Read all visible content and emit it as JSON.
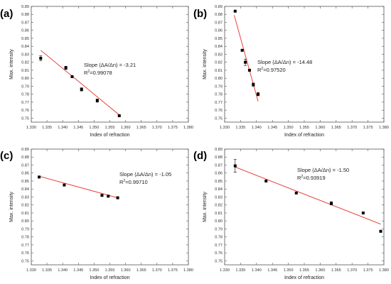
{
  "chart_data": [
    {
      "type": "scatter",
      "panel_label": "(a)",
      "xlabel": "Index of refraction",
      "ylabel": "Max. intensity",
      "xlim": [
        1.33,
        1.38
      ],
      "ylim": [
        0.745,
        0.89
      ],
      "x_ticks": [
        "1.330",
        "1.335",
        "1.340",
        "1.345",
        "1.350",
        "1.355",
        "1.360",
        "1.365",
        "1.370",
        "1.375",
        "1.380"
      ],
      "y_ticks": [
        "0.75",
        "0.76",
        "0.77",
        "0.78",
        "0.79",
        "0.80",
        "0.81",
        "0.82",
        "0.83",
        "0.84",
        "0.85",
        "0.86",
        "0.87",
        "0.88",
        "0.89"
      ],
      "points": [
        {
          "x": 1.333,
          "y": 0.825,
          "err": 0.003
        },
        {
          "x": 1.341,
          "y": 0.813,
          "err": 0.002
        },
        {
          "x": 1.343,
          "y": 0.802,
          "err": 0
        },
        {
          "x": 1.346,
          "y": 0.786,
          "err": 0.002
        },
        {
          "x": 1.351,
          "y": 0.772,
          "err": 0.002
        },
        {
          "x": 1.358,
          "y": 0.753,
          "err": 0
        }
      ],
      "fit": {
        "x": [
          1.333,
          1.358
        ],
        "y": [
          0.835,
          0.754
        ]
      },
      "annotation": {
        "slope": "Slope (ΔA/Δn) = -3.21",
        "r2_prefix": "R",
        "r2_sup": "2",
        "r2_value": "=0.99078"
      }
    },
    {
      "type": "scatter",
      "panel_label": "(b)",
      "xlabel": "Index of refraction",
      "ylabel": "Max. intensity",
      "xlim": [
        1.33,
        1.38
      ],
      "ylim": [
        0.745,
        0.89
      ],
      "x_ticks": [
        "1.330",
        "1.335",
        "1.340",
        "1.345",
        "1.350",
        "1.355",
        "1.360",
        "1.365",
        "1.370",
        "1.375",
        "1.380"
      ],
      "y_ticks": [
        "0.75",
        "0.76",
        "0.77",
        "0.78",
        "0.79",
        "0.80",
        "0.81",
        "0.82",
        "0.83",
        "0.84",
        "0.85",
        "0.86",
        "0.87",
        "0.88",
        "0.89"
      ],
      "points": [
        {
          "x": 1.3333,
          "y": 0.884,
          "err": 0
        },
        {
          "x": 1.3355,
          "y": 0.835,
          "err": 0
        },
        {
          "x": 1.3365,
          "y": 0.82,
          "err": 0.004
        },
        {
          "x": 1.3378,
          "y": 0.81,
          "err": 0
        },
        {
          "x": 1.339,
          "y": 0.792,
          "err": 0.002
        },
        {
          "x": 1.3405,
          "y": 0.78,
          "err": 0.002
        }
      ],
      "fit": {
        "x": [
          1.333,
          1.3405
        ],
        "y": [
          0.879,
          0.771
        ]
      },
      "annotation": {
        "slope": "Slope (ΔA/Δn) = -14.48",
        "r2_prefix": "R",
        "r2_sup": "2",
        "r2_value": "=0.97520"
      }
    },
    {
      "type": "scatter",
      "panel_label": "(c)",
      "xlabel": "Index of refraction",
      "ylabel": "Max. intensity",
      "xlim": [
        1.33,
        1.38
      ],
      "ylim": [
        0.745,
        0.89
      ],
      "x_ticks": [
        "1.330",
        "1.335",
        "1.340",
        "1.345",
        "1.350",
        "1.355",
        "1.360",
        "1.365",
        "1.370",
        "1.375",
        "1.380"
      ],
      "y_ticks": [
        "0.75",
        "0.76",
        "0.77",
        "0.78",
        "0.79",
        "0.80",
        "0.81",
        "0.82",
        "0.83",
        "0.84",
        "0.85",
        "0.86",
        "0.87",
        "0.88",
        "0.89"
      ],
      "points": [
        {
          "x": 1.3325,
          "y": 0.855,
          "err": 0
        },
        {
          "x": 1.3405,
          "y": 0.845,
          "err": 0
        },
        {
          "x": 1.3525,
          "y": 0.832,
          "err": 0
        },
        {
          "x": 1.3545,
          "y": 0.831,
          "err": 0
        },
        {
          "x": 1.3575,
          "y": 0.829,
          "err": 0
        }
      ],
      "fit": {
        "x": [
          1.3325,
          1.3575
        ],
        "y": [
          0.856,
          0.829
        ]
      },
      "annotation": {
        "slope": "Slope (ΔA/Δn) = -1.05",
        "r2_prefix": "R",
        "r2_sup": "2",
        "r2_value": "=0.99710"
      }
    },
    {
      "type": "scatter",
      "panel_label": "(d)",
      "xlabel": "Index of refraction",
      "ylabel": "Max. intensity",
      "xlim": [
        1.33,
        1.38
      ],
      "ylim": [
        0.745,
        0.89
      ],
      "x_ticks": [
        "1.330",
        "1.335",
        "1.340",
        "1.345",
        "1.350",
        "1.355",
        "1.360",
        "1.365",
        "1.370",
        "1.375",
        "1.380"
      ],
      "y_ticks": [
        "0.75",
        "0.76",
        "0.77",
        "0.78",
        "0.79",
        "0.80",
        "0.81",
        "0.82",
        "0.83",
        "0.84",
        "0.85",
        "0.86",
        "0.87",
        "0.88",
        "0.89"
      ],
      "points": [
        {
          "x": 1.3333,
          "y": 0.869,
          "err": 0.008
        },
        {
          "x": 1.343,
          "y": 0.85,
          "err": 0
        },
        {
          "x": 1.3525,
          "y": 0.835,
          "err": 0
        },
        {
          "x": 1.3635,
          "y": 0.822,
          "err": 0.002
        },
        {
          "x": 1.3735,
          "y": 0.81,
          "err": 0
        },
        {
          "x": 1.379,
          "y": 0.787,
          "err": 0
        }
      ],
      "fit": {
        "x": [
          1.333,
          1.379
        ],
        "y": [
          0.868,
          0.796
        ]
      },
      "annotation": {
        "slope": "Slope (ΔA/Δn) = -1.50",
        "r2_prefix": "R",
        "r2_sup": "2",
        "r2_value": "=0.93919"
      }
    }
  ]
}
